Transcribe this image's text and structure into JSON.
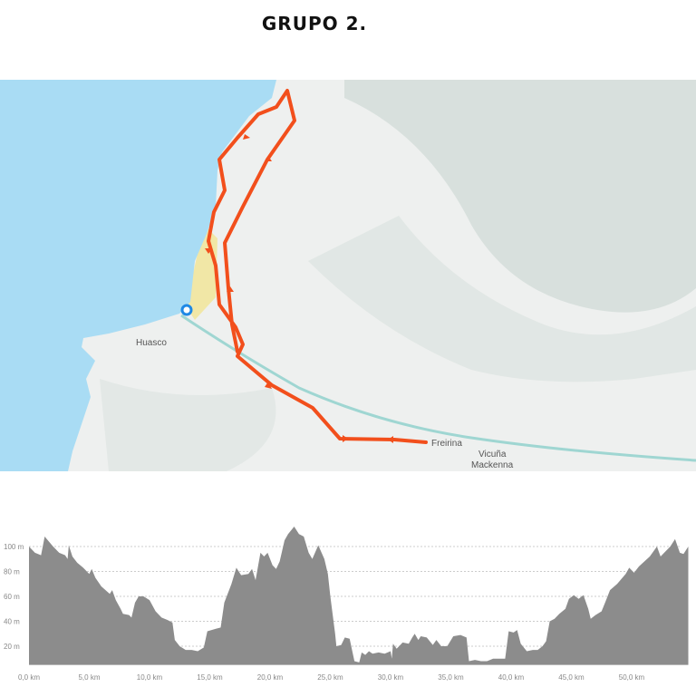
{
  "title": "GRUPO  2.",
  "map": {
    "labels": {
      "town1": "Huasco",
      "town2": "Freirina",
      "town3_line1": "Vicuña",
      "town3_line2": "Mackenna"
    },
    "colors": {
      "sea": "#a9dcf4",
      "land": "#eef0ef",
      "route": "#f24f1c",
      "marker": "#1e88e5",
      "beach": "#f1e7a6"
    }
  },
  "chart_data": {
    "type": "area",
    "title": "",
    "xlabel": "",
    "ylabel": "",
    "xlim": [
      0,
      54.7
    ],
    "ylim": [
      5,
      120
    ],
    "grid": true,
    "x_ticks": [
      0,
      5,
      10,
      15,
      20,
      25,
      30,
      35,
      40,
      45,
      50
    ],
    "x_tick_labels": [
      "0,0 km",
      "5,0 km",
      "10,0 km",
      "15,0 km",
      "20,0 km",
      "25,0 km",
      "30,0 km",
      "35,0 km",
      "40,0 km",
      "45,0 km",
      "50,0 km"
    ],
    "y_ticks": [
      20,
      40,
      60,
      80,
      100
    ],
    "y_tick_labels": [
      "20 m",
      "40 m",
      "60 m",
      "80 m",
      "100 m"
    ],
    "fill_color": "#8c8c8c",
    "points": [
      [
        0,
        100
      ],
      [
        0.5,
        95
      ],
      [
        1,
        93
      ],
      [
        1.3,
        108
      ],
      [
        2,
        100
      ],
      [
        2.5,
        95
      ],
      [
        3,
        93
      ],
      [
        3.2,
        90
      ],
      [
        3.3,
        101
      ],
      [
        3.6,
        92
      ],
      [
        4,
        87
      ],
      [
        4.5,
        83
      ],
      [
        5,
        78
      ],
      [
        5.2,
        82
      ],
      [
        5.5,
        75
      ],
      [
        6,
        68
      ],
      [
        6.7,
        62
      ],
      [
        6.9,
        65
      ],
      [
        7.2,
        57
      ],
      [
        7.6,
        50
      ],
      [
        7.8,
        46
      ],
      [
        8.3,
        45
      ],
      [
        8.5,
        43
      ],
      [
        8.8,
        55
      ],
      [
        9.1,
        60
      ],
      [
        9.5,
        60
      ],
      [
        10,
        57
      ],
      [
        10.5,
        48
      ],
      [
        11,
        43
      ],
      [
        11.5,
        41
      ],
      [
        11.9,
        39
      ],
      [
        12.1,
        25
      ],
      [
        12.5,
        20
      ],
      [
        13,
        17
      ],
      [
        13.5,
        17
      ],
      [
        14,
        16
      ],
      [
        14.5,
        19
      ],
      [
        14.8,
        32
      ],
      [
        15.5,
        34
      ],
      [
        15.9,
        35
      ],
      [
        16.2,
        55
      ],
      [
        16.8,
        70
      ],
      [
        17.2,
        83
      ],
      [
        17.6,
        77
      ],
      [
        18.2,
        78
      ],
      [
        18.5,
        82
      ],
      [
        18.8,
        73
      ],
      [
        19.2,
        95
      ],
      [
        19.5,
        92
      ],
      [
        19.8,
        95
      ],
      [
        20.2,
        85
      ],
      [
        20.5,
        82
      ],
      [
        20.8,
        88
      ],
      [
        21.2,
        105
      ],
      [
        21.5,
        110
      ],
      [
        22,
        116
      ],
      [
        22.4,
        110
      ],
      [
        22.8,
        108
      ],
      [
        23.2,
        95
      ],
      [
        23.5,
        90
      ],
      [
        24,
        101
      ],
      [
        24.5,
        90
      ],
      [
        24.8,
        78
      ],
      [
        25,
        60
      ],
      [
        25.4,
        30
      ],
      [
        25.5,
        20
      ],
      [
        25.9,
        21
      ],
      [
        26.2,
        27
      ],
      [
        26.6,
        26
      ],
      [
        27,
        8
      ],
      [
        27.4,
        7
      ],
      [
        27.6,
        15
      ],
      [
        27.9,
        13
      ],
      [
        28.2,
        16
      ],
      [
        28.5,
        14
      ],
      [
        29,
        15
      ],
      [
        29.5,
        14
      ],
      [
        30,
        16
      ],
      [
        30.1,
        10
      ],
      [
        30.2,
        22
      ],
      [
        30.5,
        18
      ],
      [
        31,
        23
      ],
      [
        31.5,
        22
      ],
      [
        31.8,
        27
      ],
      [
        32,
        30
      ],
      [
        32.3,
        25
      ],
      [
        32.5,
        28
      ],
      [
        33,
        27
      ],
      [
        33.5,
        21
      ],
      [
        33.8,
        25
      ],
      [
        34.2,
        20
      ],
      [
        34.7,
        20
      ],
      [
        35.2,
        28
      ],
      [
        35.8,
        29
      ],
      [
        36.3,
        27
      ],
      [
        36.5,
        8
      ],
      [
        37,
        9
      ],
      [
        37.5,
        8
      ],
      [
        38,
        8
      ],
      [
        38.5,
        10
      ],
      [
        39,
        10
      ],
      [
        39.5,
        10
      ],
      [
        39.8,
        32
      ],
      [
        40.2,
        31
      ],
      [
        40.5,
        33
      ],
      [
        40.8,
        22
      ],
      [
        41.3,
        16
      ],
      [
        41.8,
        17
      ],
      [
        42.2,
        17
      ],
      [
        42.6,
        20
      ],
      [
        42.9,
        24
      ],
      [
        43.2,
        40
      ],
      [
        43.6,
        42
      ],
      [
        44,
        46
      ],
      [
        44.5,
        50
      ],
      [
        44.8,
        58
      ],
      [
        45.2,
        61
      ],
      [
        45.6,
        58
      ],
      [
        46,
        61
      ],
      [
        46.4,
        50
      ],
      [
        46.6,
        42
      ],
      [
        47,
        45
      ],
      [
        47.5,
        48
      ],
      [
        47.8,
        55
      ],
      [
        48.2,
        65
      ],
      [
        48.8,
        70
      ],
      [
        49.5,
        78
      ],
      [
        49.8,
        83
      ],
      [
        50.2,
        79
      ],
      [
        50.6,
        84
      ],
      [
        51.5,
        92
      ],
      [
        52.1,
        100
      ],
      [
        52.4,
        92
      ],
      [
        52.7,
        95
      ],
      [
        53.2,
        100
      ],
      [
        53.6,
        106
      ],
      [
        54,
        95
      ],
      [
        54.3,
        94
      ],
      [
        54.7,
        100
      ]
    ]
  }
}
